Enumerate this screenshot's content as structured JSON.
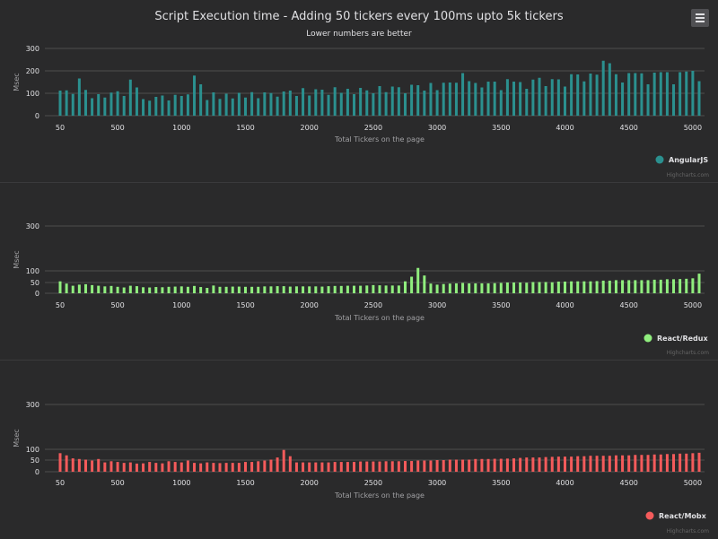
{
  "title": "Script Execution time - Adding 50 tickers every 100ms upto 5k tickers",
  "subtitle": "Lower numbers are better",
  "credits": "Highcharts.com",
  "menu_icon": "hamburger-menu-icon",
  "chart_data": [
    {
      "type": "bar",
      "series": [
        {
          "name": "AngularJS",
          "color": "#2b908f",
          "values": [
            112,
            113,
            97,
            166,
            115,
            78,
            96,
            81,
            103,
            109,
            88,
            161,
            126,
            74,
            67,
            84,
            90,
            68,
            93,
            88,
            95,
            179,
            140,
            70,
            104,
            75,
            98,
            77,
            102,
            81,
            105,
            78,
            104,
            101,
            85,
            108,
            112,
            88,
            123,
            90,
            118,
            116,
            93,
            127,
            102,
            120,
            96,
            124,
            113,
            100,
            132,
            105,
            130,
            127,
            100,
            138,
            136,
            112,
            146,
            114,
            147,
            148,
            147,
            190,
            154,
            146,
            126,
            152,
            152,
            114,
            163,
            152,
            150,
            120,
            161,
            169,
            132,
            163,
            162,
            130,
            185,
            184,
            153,
            188,
            183,
            245,
            234,
            185,
            148,
            190,
            190,
            189,
            140,
            192,
            194,
            194,
            140,
            194,
            197,
            200,
            154
          ]
        }
      ],
      "x_ticks": [
        "50",
        "500",
        "1000",
        "1500",
        "2000",
        "2500",
        "3000",
        "3500",
        "4000",
        "4500",
        "5000"
      ],
      "y_ticks": [
        "0",
        "100",
        "200",
        "300"
      ],
      "ylim": [
        0,
        300
      ],
      "xlabel": "Total Tickers on the page",
      "ylabel": "Msec",
      "legend_position": "bottom-right"
    },
    {
      "type": "bar",
      "series": [
        {
          "name": "React/Redux",
          "color": "#90ee7e",
          "values": [
            55,
            45,
            35,
            40,
            42,
            38,
            35,
            32,
            34,
            30,
            27,
            35,
            33,
            28,
            27,
            29,
            28,
            30,
            31,
            32,
            30,
            34,
            29,
            25,
            36,
            30,
            30,
            31,
            31,
            30,
            30,
            30,
            32,
            32,
            33,
            33,
            31,
            32,
            32,
            32,
            32,
            31,
            33,
            34,
            34,
            35,
            35,
            35,
            36,
            38,
            37,
            36,
            36,
            36,
            55,
            75,
            113,
            80,
            45,
            40,
            43,
            45,
            46,
            48,
            46,
            46,
            46,
            46,
            47,
            48,
            50,
            50,
            50,
            49,
            52,
            52,
            52,
            51,
            54,
            54,
            55,
            55,
            55,
            55,
            56,
            58,
            58,
            60,
            60,
            60,
            60,
            60,
            60,
            62,
            62,
            64,
            64,
            65,
            66,
            68,
            88
          ]
        }
      ],
      "x_ticks": [
        "50",
        "500",
        "1000",
        "1500",
        "2000",
        "2500",
        "3000",
        "3500",
        "4000",
        "4500",
        "5000"
      ],
      "y_ticks": [
        "0",
        "50",
        "100",
        "300"
      ],
      "ylim": [
        0,
        300
      ],
      "xlabel": "Total Tickers on the page",
      "ylabel": "Msec",
      "legend_position": "bottom-right"
    },
    {
      "type": "bar",
      "series": [
        {
          "name": "React/Mobx",
          "color": "#f45b5b",
          "values": [
            82,
            72,
            58,
            55,
            52,
            48,
            55,
            40,
            45,
            42,
            38,
            40,
            35,
            36,
            42,
            38,
            36,
            45,
            42,
            40,
            48,
            38,
            36,
            40,
            38,
            37,
            38,
            38,
            38,
            42,
            42,
            45,
            48,
            52,
            62,
            97,
            68,
            40,
            40,
            40,
            40,
            40,
            40,
            42,
            42,
            42,
            42,
            44,
            44,
            44,
            44,
            45,
            45,
            45,
            46,
            46,
            48,
            48,
            48,
            50,
            50,
            52,
            52,
            52,
            52,
            55,
            55,
            55,
            56,
            56,
            57,
            58,
            60,
            62,
            62,
            62,
            64,
            65,
            66,
            66,
            66,
            68,
            68,
            70,
            70,
            70,
            70,
            72,
            72,
            72,
            74,
            74,
            74,
            76,
            76,
            78,
            78,
            80,
            80,
            82,
            84
          ]
        }
      ],
      "x_ticks": [
        "50",
        "500",
        "1000",
        "1500",
        "2000",
        "2500",
        "3000",
        "3500",
        "4000",
        "4500",
        "5000"
      ],
      "y_ticks": [
        "0",
        "50",
        "100",
        "300"
      ],
      "ylim": [
        0,
        300
      ],
      "xlabel": "Total Tickers on the page",
      "ylabel": "Msec",
      "legend_position": "bottom-right"
    }
  ]
}
